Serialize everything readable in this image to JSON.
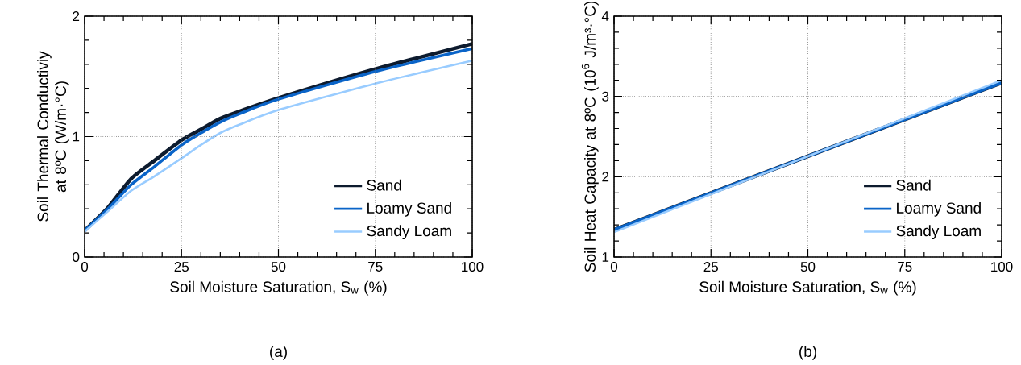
{
  "chart_data": [
    {
      "type": "line",
      "xlabel": "Soil Moisture Saturation, S$_{w}$  (%)",
      "ylabel": "Soil Thermal Conductiviy at 8ºC (W/m·°C)",
      "x": [
        0,
        6,
        12,
        18,
        25,
        30,
        35,
        40,
        50,
        75,
        100
      ],
      "series": [
        {
          "name": "Sand",
          "color": "#0d1b2e",
          "values": [
            0.22,
            0.41,
            0.65,
            0.8,
            0.97,
            1.06,
            1.15,
            1.21,
            1.32,
            1.56,
            1.77
          ]
        },
        {
          "name": "Loamy Sand",
          "color": "#0a64c8",
          "values": [
            0.22,
            0.4,
            0.6,
            0.75,
            0.93,
            1.03,
            1.12,
            1.19,
            1.31,
            1.54,
            1.73
          ]
        },
        {
          "name": "Sandy Loam",
          "color": "#99ccff",
          "values": [
            0.21,
            0.38,
            0.55,
            0.67,
            0.82,
            0.93,
            1.03,
            1.1,
            1.22,
            1.44,
            1.63
          ]
        }
      ],
      "xlim": [
        0,
        100
      ],
      "xticks": [
        0,
        25,
        50,
        75,
        100
      ],
      "ylim": [
        0,
        2
      ],
      "yticks": [
        0,
        1,
        2
      ],
      "grid": true,
      "legend": "bottom right",
      "line_style": "solid",
      "annotations": [
        "(a)"
      ]
    },
    {
      "type": "line",
      "xlabel": "Soil Moisture Saturation, S$_{w}$  (%)",
      "ylabel": "Soil Heat Capacity at 8ºC (10$^{6}$ J/m³·°C)",
      "x": [
        0,
        100
      ],
      "series": [
        {
          "name": "Sand",
          "color": "#0d1b2e",
          "values": [
            1.34,
            3.17
          ]
        },
        {
          "name": "Loamy Sand",
          "color": "#0a64c8",
          "values": [
            1.34,
            3.17
          ]
        },
        {
          "name": "Sandy Loam",
          "color": "#99ccff",
          "values": [
            1.31,
            3.2
          ]
        }
      ],
      "xlim": [
        0,
        100
      ],
      "xticks": [
        0,
        25,
        50,
        75,
        100
      ],
      "ylim": [
        1,
        4
      ],
      "yticks": [
        1,
        2,
        3,
        4
      ],
      "grid": true,
      "legend": "bottom right",
      "line_style": "solid",
      "annotations": [
        "(b)"
      ]
    }
  ]
}
